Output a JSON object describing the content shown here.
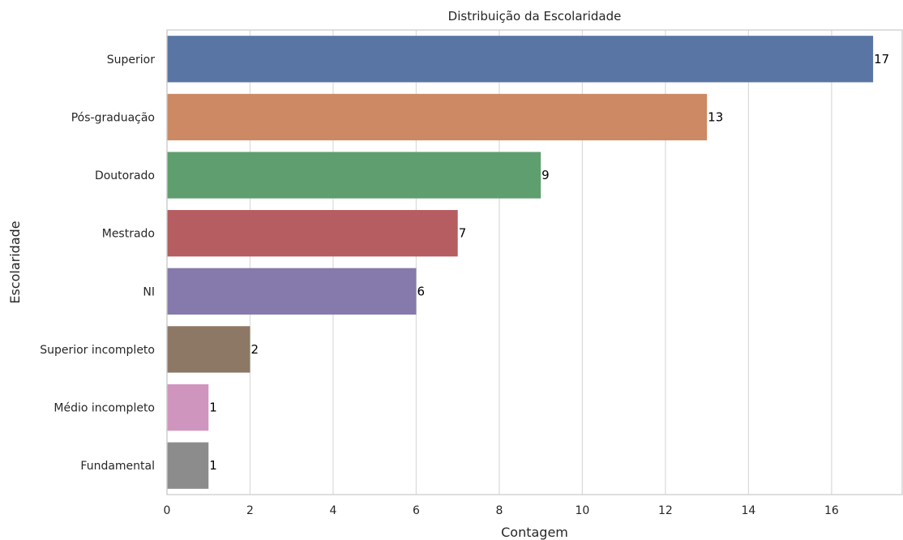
{
  "chart_data": {
    "type": "bar",
    "orientation": "horizontal",
    "title": "Distribuição da Escolaridade",
    "xlabel": "Contagem",
    "ylabel": "Escolaridade",
    "categories": [
      "Superior",
      "Pós-graduação",
      "Doutorado",
      "Mestrado",
      "NI",
      "Superior incompleto",
      "Médio incompleto",
      "Fundamental"
    ],
    "values": [
      17,
      13,
      9,
      7,
      6,
      2,
      1,
      1
    ],
    "colors": [
      "#5875a4",
      "#cc8963",
      "#5f9e6e",
      "#b55d60",
      "#857aab",
      "#8d7866",
      "#d095bf",
      "#8c8c8c"
    ],
    "xlim": [
      0,
      17.7
    ],
    "xticks": [
      0,
      2,
      4,
      6,
      8,
      10,
      12,
      14,
      16
    ],
    "grid": "vertical",
    "data_labels": true
  }
}
